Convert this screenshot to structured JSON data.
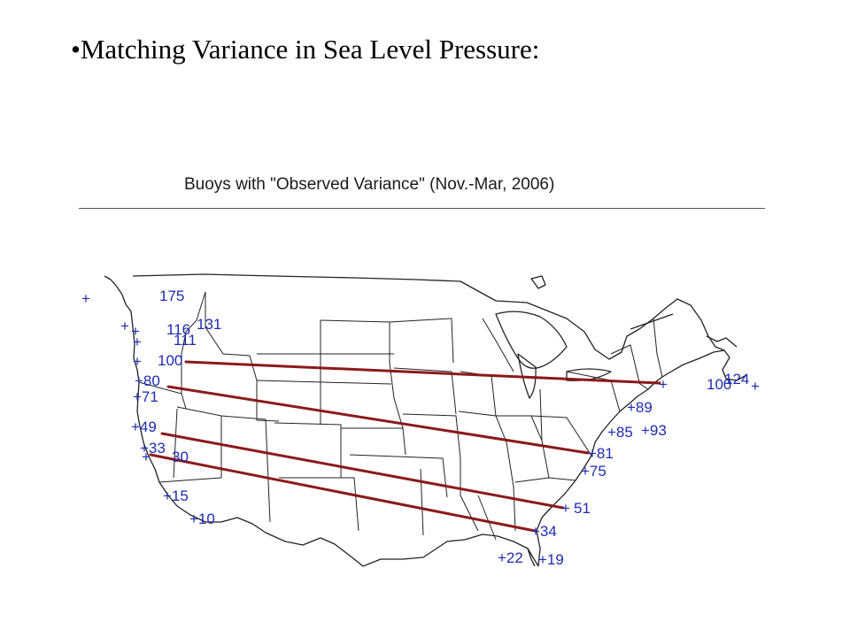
{
  "slide": {
    "title": "•Matching Variance in Sea Level Pressure:"
  },
  "figure": {
    "title": "Buoys with \"Observed Variance\" (Nov.-Mar, 2006)",
    "colors": {
      "marker": "#1f2bb0",
      "matching_line": "#8b1a1a",
      "boundaries": "#222222"
    },
    "buoy_labels": [
      {
        "id": "b175",
        "text": "175"
      },
      {
        "id": "b116",
        "text": "116"
      },
      {
        "id": "b131",
        "text": "131"
      },
      {
        "id": "b111",
        "text": "111"
      },
      {
        "id": "b100w",
        "text": "100"
      },
      {
        "id": "b80",
        "text": "+80"
      },
      {
        "id": "b71",
        "text": "+71"
      },
      {
        "id": "b49",
        "text": "+49"
      },
      {
        "id": "b33",
        "text": "+33"
      },
      {
        "id": "b30",
        "text": "30"
      },
      {
        "id": "b15",
        "text": "+15"
      },
      {
        "id": "b10",
        "text": "+10"
      },
      {
        "id": "b100e",
        "text": "100"
      },
      {
        "id": "b124",
        "text": "124"
      },
      {
        "id": "b89",
        "text": "+89"
      },
      {
        "id": "b85",
        "text": "+85"
      },
      {
        "id": "b93",
        "text": "+93"
      },
      {
        "id": "b81",
        "text": "+81"
      },
      {
        "id": "b75",
        "text": "+75"
      },
      {
        "id": "b51",
        "text": "51"
      },
      {
        "id": "b34",
        "text": "+34"
      },
      {
        "id": "b22",
        "text": "+22"
      },
      {
        "id": "b19",
        "text": "+19"
      }
    ],
    "matching_pairs": [
      {
        "west": "100",
        "east": "100"
      },
      {
        "west": "+80",
        "east": "+81"
      },
      {
        "west": "+49",
        "east": "51"
      },
      {
        "west": "+33",
        "east": "+34"
      }
    ]
  }
}
